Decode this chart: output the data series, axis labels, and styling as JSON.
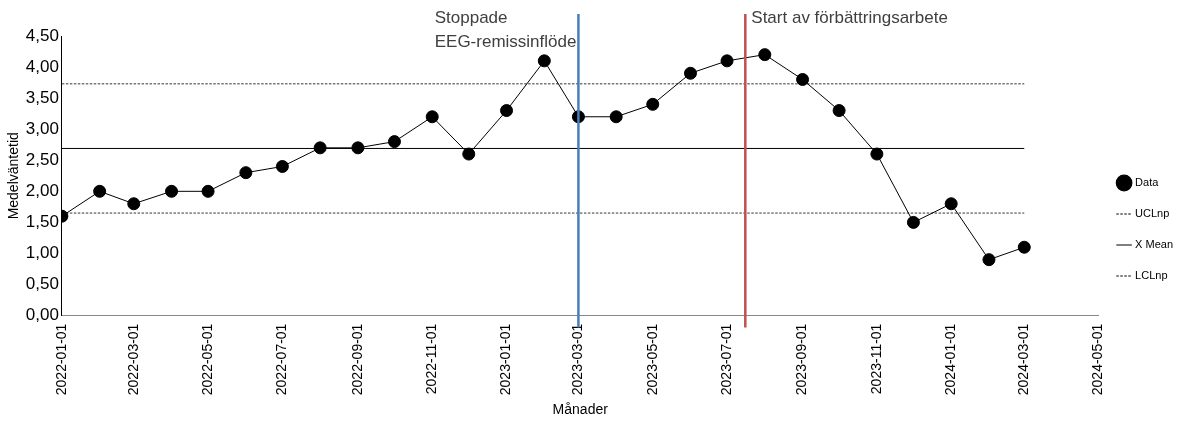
{
  "chart_data": {
    "type": "line",
    "xlabel": "Månader",
    "ylabel": "Medelväntetid",
    "x": [
      "2022-01",
      "2022-02",
      "2022-03",
      "2022-04",
      "2022-05",
      "2022-06",
      "2022-07",
      "2022-08",
      "2022-09",
      "2022-10",
      "2022-11",
      "2022-12",
      "2023-01",
      "2023-02",
      "2023-03",
      "2023-04",
      "2023-05",
      "2023-06",
      "2023-07",
      "2023-08",
      "2023-09",
      "2023-10",
      "2023-11",
      "2023-12",
      "2024-01",
      "2024-02",
      "2024-03"
    ],
    "series": [
      {
        "name": "Data",
        "color": "#000000",
        "marker": "circle",
        "line_style": "solid",
        "values": [
          1.6,
          2.0,
          1.8,
          2.0,
          2.0,
          2.3,
          2.4,
          2.7,
          2.7,
          2.8,
          3.2,
          2.6,
          3.3,
          4.1,
          3.2,
          3.2,
          3.4,
          3.9,
          4.1,
          4.2,
          3.8,
          3.3,
          2.6,
          1.5,
          1.8,
          0.9,
          1.1
        ]
      },
      {
        "name": "UCLnp",
        "color": "#000000",
        "marker": "none",
        "line_style": "dotted",
        "x": [
          "2022-01",
          "2024-03"
        ],
        "values": [
          3.73,
          3.73
        ]
      },
      {
        "name": "X Mean",
        "color": "#000000",
        "marker": "none",
        "line_style": "solid",
        "x": [
          "2022-01",
          "2024-03"
        ],
        "values": [
          2.69,
          2.69
        ]
      },
      {
        "name": "LCLnp",
        "color": "#000000",
        "marker": "none",
        "line_style": "dotted",
        "x": [
          "2022-01",
          "2024-03"
        ],
        "values": [
          1.65,
          1.65
        ]
      }
    ],
    "xlim": [
      "2022-01-01",
      "2024-05-01"
    ],
    "xticks": [
      "2022-01-01",
      "2022-03-01",
      "2022-05-01",
      "2022-07-01",
      "2022-09-01",
      "2022-11-01",
      "2023-01-01",
      "2023-03-01",
      "2023-05-01",
      "2023-07-01",
      "2023-09-01",
      "2023-11-01",
      "2024-01-01",
      "2024-03-01",
      "2024-05-01"
    ],
    "ylim": [
      0,
      4.5
    ],
    "yticks": [
      {
        "value": 0,
        "label": "0,00"
      },
      {
        "value": 0.5,
        "label": "0,50"
      },
      {
        "value": 1,
        "label": "1,00"
      },
      {
        "value": 1.5,
        "label": "1,50"
      },
      {
        "value": 2,
        "label": "2,00"
      },
      {
        "value": 2.5,
        "label": "2,50"
      },
      {
        "value": 3,
        "label": "3,00"
      },
      {
        "value": 3.5,
        "label": "3,50"
      },
      {
        "value": 4,
        "label": "4,00"
      },
      {
        "value": 4.5,
        "label": "4,50"
      }
    ],
    "ref_lines": [
      {
        "axis": "x",
        "value": "2023-03-01",
        "label": "Stoppade EEG-remissinflöde",
        "color": "#4a7ebb"
      },
      {
        "axis": "x",
        "value": "2023-07-16",
        "label": "Start av förbättringsarbete",
        "color": "#c0504d"
      }
    ],
    "grid": false,
    "legend": "right"
  }
}
